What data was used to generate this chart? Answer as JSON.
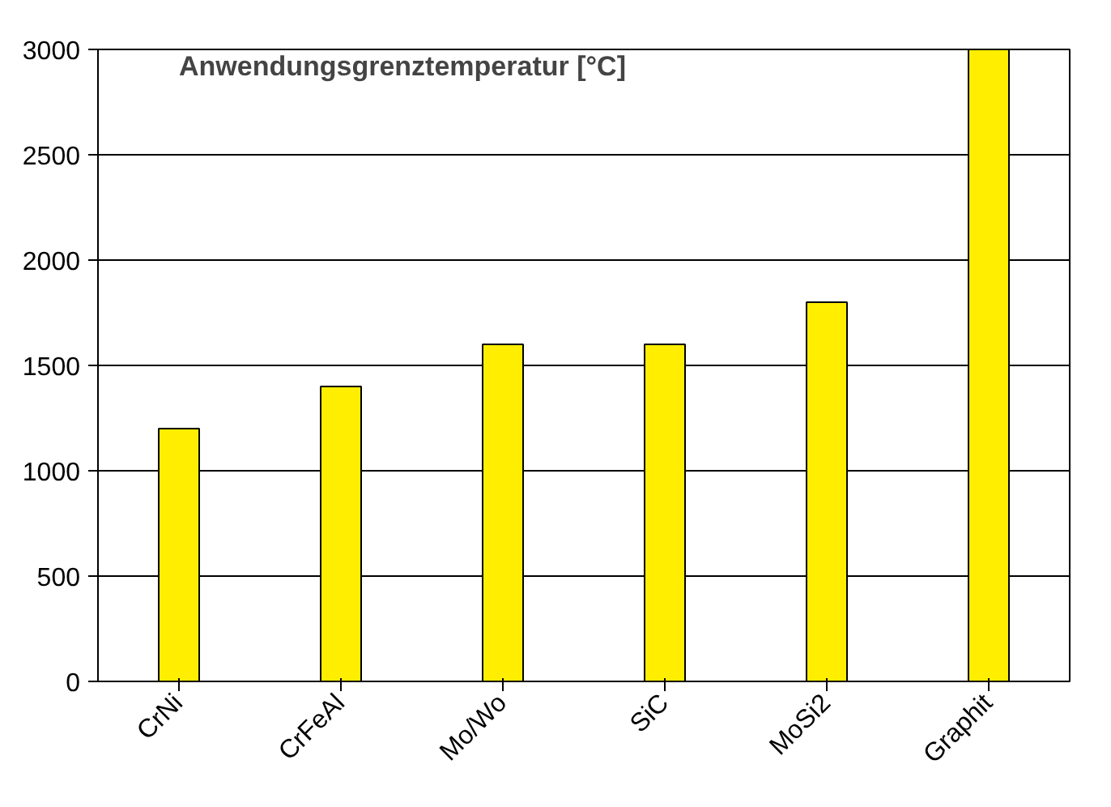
{
  "chart_data": {
    "type": "bar",
    "title": "Anwendungsgrenztemperatur [°C]",
    "categories": [
      "CrNi",
      "CrFeAl",
      "Mo/Wo",
      "SiC",
      "MoSi2",
      "Graphit"
    ],
    "values": [
      1200,
      1400,
      1600,
      1600,
      1800,
      3000
    ],
    "color": "#ffee00",
    "ylim": [
      0,
      3000
    ],
    "yticks": [
      0,
      500,
      1000,
      1500,
      2000,
      2500,
      3000
    ],
    "grid": "y"
  }
}
